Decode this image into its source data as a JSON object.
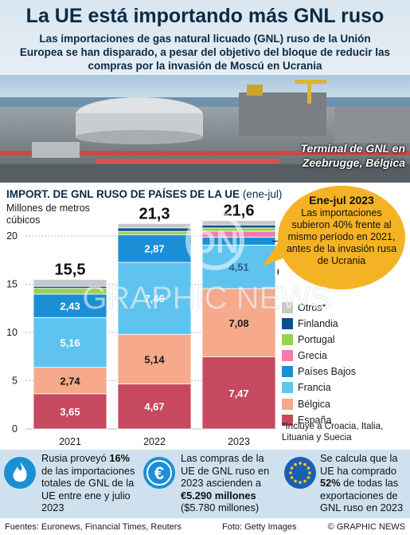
{
  "header": {
    "title": "La UE está importando más GNL ruso",
    "subtitle": "Las importaciones de gas natural licuado (GNL) ruso de la Unión Europea se han disparado, a pesar del objetivo del bloque de reducir las compras por la invasión de Moscú en Ucrania"
  },
  "photo": {
    "caption_line1": "Terminal de GNL en",
    "caption_line2": "Zeebrugge, Bélgica"
  },
  "chart_title": {
    "bold": "IMPORT. DE GNL RUSO DE PAÍSES DE LA UE",
    "plain": "(ene-jul)"
  },
  "callout": {
    "title": "Ene-jul 2023",
    "text": "Las importaciones subieron 40% frente al mismo período en 2021, antes de la invasión rusa de Ucrania"
  },
  "legend_note": "*Incluye a Croacia, Italia, Lituania y Suecia",
  "watermark": {
    "line1": "ON",
    "line2": "GRAPHIC NEWS"
  },
  "chart_data": {
    "type": "bar",
    "stacked": true,
    "ylabel": "Millones de metros cúbicos",
    "ylim": [
      0,
      20
    ],
    "yticks": [
      0,
      5,
      10,
      15,
      20
    ],
    "categories": [
      "2021",
      "2022",
      "2023"
    ],
    "totals": [
      "15,5",
      "21,3",
      "21,6"
    ],
    "series": [
      {
        "name": "España",
        "color": "#c6495f",
        "values": [
          3.65,
          4.67,
          7.47
        ],
        "labels": [
          "3,65",
          "4,67",
          "7,47"
        ]
      },
      {
        "name": "Bélgica",
        "color": "#f6a98b",
        "values": [
          2.74,
          5.14,
          7.08
        ],
        "labels": [
          "2,74",
          "5,14",
          "7,08"
        ]
      },
      {
        "name": "Francia",
        "color": "#5ec4ef",
        "values": [
          5.16,
          7.46,
          4.51
        ],
        "labels": [
          "5,16",
          "7,46",
          "4,51"
        ]
      },
      {
        "name": "Países Bajos",
        "color": "#1b8fd6",
        "values": [
          2.43,
          2.87,
          0.83
        ],
        "labels": [
          "2,43",
          "2,87",
          "0,83"
        ]
      },
      {
        "name": "Grecia",
        "color": "#f07bb0",
        "values": [
          0,
          0,
          0.6
        ],
        "labels": [
          "",
          "",
          ""
        ]
      },
      {
        "name": "Portugal",
        "color": "#9bd052",
        "values": [
          0.6,
          0.35,
          0.35
        ],
        "labels": [
          "",
          "",
          ""
        ]
      },
      {
        "name": "Finlandia",
        "color": "#0c4f8f",
        "values": [
          0.2,
          0.35,
          0.3
        ],
        "labels": [
          "",
          "",
          ""
        ]
      },
      {
        "name": "Otros*",
        "color": "#c8c8c8",
        "values": [
          0.72,
          0.46,
          0.46
        ],
        "labels": [
          "",
          "",
          ""
        ]
      }
    ]
  },
  "facts": {
    "russia": {
      "pre": "Rusia proveyó ",
      "bold": "16%",
      "post": " de las importaciones totales de GNL de la UE entre ene y julio 2023"
    },
    "euro": {
      "pre": "Las compras de la UE de GNL ruso en 2023 ascienden a ",
      "bold": "€5.290 millones",
      "post": " ($5.780 millones)"
    },
    "eu": {
      "pre": "Se calcula que la UE ha comprado ",
      "bold": "52%",
      "post": " de todas las exportaciones de GNL ruso en 2023"
    }
  },
  "footer": {
    "sources": "Fuentes: Euronews, Financial Times, Reuters",
    "photo": "Foto: Getty Images",
    "copyright": "© GRAPHIC NEWS"
  }
}
